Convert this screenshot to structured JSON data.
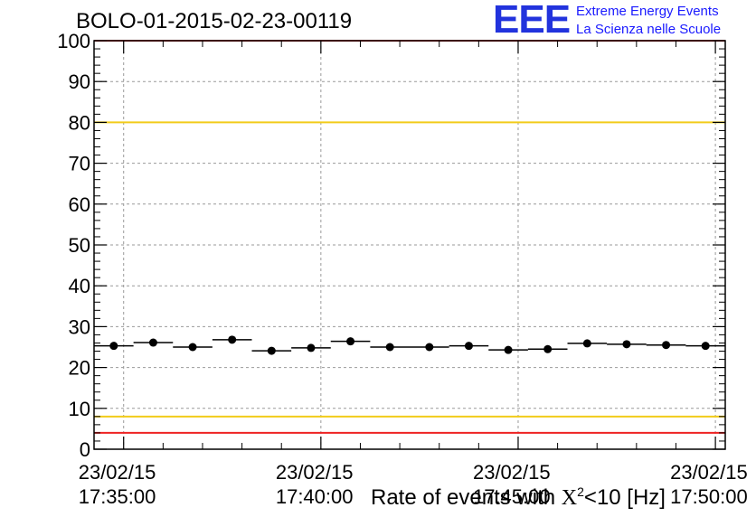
{
  "title": "BOLO-01-2015-02-23-00119",
  "logo": {
    "mark": "EEE",
    "line1": "Extreme Energy Events",
    "line2": "La Scienza nelle Scuole",
    "color": "#2233dd"
  },
  "x_title": {
    "prefix": "Rate of events with ",
    "symbol": "X",
    "superscript": "2",
    "suffix": "<10 [Hz]"
  },
  "colors": {
    "limit_red": "#ee2222",
    "limit_yellow": "#f2cc1a",
    "points": "#000000",
    "grid": "#999999"
  },
  "chart_data": {
    "type": "scatter",
    "title": "BOLO-01-2015-02-23-00119",
    "xlabel": "Rate of events with X^2<10 [Hz]",
    "ylabel": "",
    "ylim": [
      0,
      100
    ],
    "xlim": [
      "23/02/15 17:34:15",
      "23/02/15 17:50:15"
    ],
    "yticks": [
      0,
      10,
      20,
      30,
      40,
      50,
      60,
      70,
      80,
      90,
      100
    ],
    "xticks": [
      {
        "date": "23/02/15",
        "time": "17:35:00"
      },
      {
        "date": "23/02/15",
        "time": "17:40:00"
      },
      {
        "date": "23/02/15",
        "time": "17:45:00"
      },
      {
        "date": "23/02/15",
        "time": "17:50:00"
      }
    ],
    "grid": true,
    "bin_width_seconds": 60,
    "series": [
      {
        "x": [
          "17:34:45",
          "17:35:45",
          "17:36:45",
          "17:37:45",
          "17:38:45",
          "17:39:45",
          "17:40:45",
          "17:41:45",
          "17:42:45",
          "17:43:45",
          "17:44:45",
          "17:45:45",
          "17:46:45",
          "17:47:45",
          "17:48:45",
          "17:49:45"
        ],
        "values": [
          25.3,
          26.1,
          25.0,
          26.8,
          24.1,
          24.8,
          26.4,
          25.0,
          25.0,
          25.3,
          24.3,
          24.5,
          25.9,
          25.7,
          25.5,
          25.3
        ]
      }
    ],
    "reference_lines": [
      {
        "y": 100,
        "color": "red"
      },
      {
        "y": 80,
        "color": "yellow"
      },
      {
        "y": 8,
        "color": "yellow"
      },
      {
        "y": 4,
        "color": "red"
      }
    ]
  }
}
